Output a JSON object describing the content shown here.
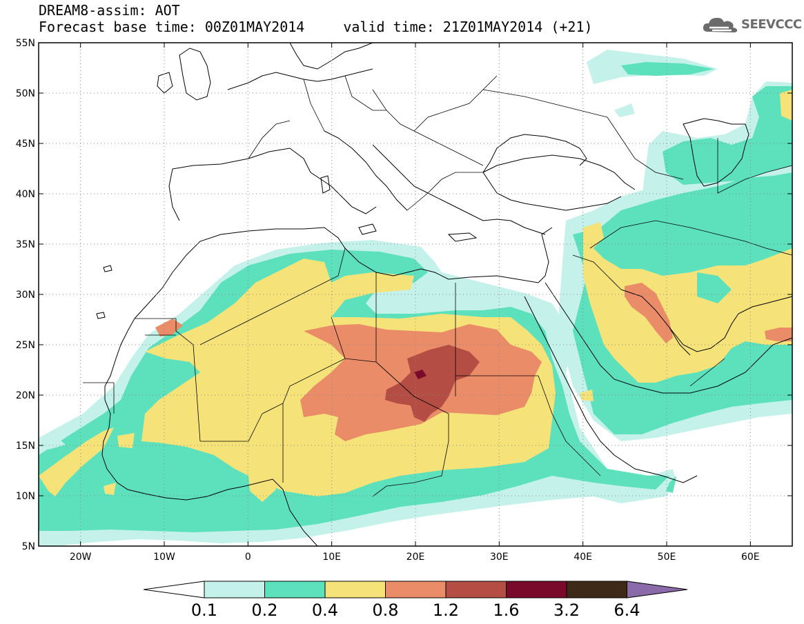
{
  "header": {
    "title": "DREAM8-assim: AOT",
    "base_time": "Forecast base time: 00Z01MAY2014",
    "valid_time": "valid time: 21Z01MAY2014 (+21)"
  },
  "logo": {
    "text": "SEEVCCC",
    "icon": "cloud-icon",
    "color": "#6b6b6b"
  },
  "map": {
    "lon_range": [
      -25,
      65
    ],
    "lat_range": [
      5,
      55
    ],
    "x_ticks": [
      {
        "lon": -20,
        "label": "20W"
      },
      {
        "lon": -10,
        "label": "10W"
      },
      {
        "lon": 0,
        "label": "0"
      },
      {
        "lon": 10,
        "label": "10E"
      },
      {
        "lon": 20,
        "label": "20E"
      },
      {
        "lon": 30,
        "label": "30E"
      },
      {
        "lon": 40,
        "label": "40E"
      },
      {
        "lon": 50,
        "label": "50E"
      },
      {
        "lon": 60,
        "label": "60E"
      }
    ],
    "y_ticks": [
      {
        "lat": 55,
        "label": "55N"
      },
      {
        "lat": 50,
        "label": "50N"
      },
      {
        "lat": 45,
        "label": "45N"
      },
      {
        "lat": 40,
        "label": "40N"
      },
      {
        "lat": 35,
        "label": "35N"
      },
      {
        "lat": 30,
        "label": "30N"
      },
      {
        "lat": 25,
        "label": "25N"
      },
      {
        "lat": 20,
        "label": "20N"
      },
      {
        "lat": 15,
        "label": "15N"
      },
      {
        "lat": 10,
        "label": "10N"
      },
      {
        "lat": 5,
        "label": "5N"
      }
    ]
  },
  "colorbar": {
    "labels": [
      "0.1",
      "0.2",
      "0.4",
      "0.8",
      "1.2",
      "1.6",
      "3.2",
      "6.4"
    ],
    "colors": [
      "#c4f2ea",
      "#5ce1bc",
      "#f5e37a",
      "#ea8c67",
      "#b44e44",
      "#7a0a2c",
      "#3e2818"
    ],
    "under_color": "#ffffff",
    "over_color": "#8a6aa8"
  },
  "colors": {
    "c1": "#c4f2ea",
    "c2": "#5ce1bc",
    "c3": "#f5e37a",
    "c4": "#ea8c67",
    "c5": "#b44e44",
    "c6": "#7a0a2c"
  }
}
